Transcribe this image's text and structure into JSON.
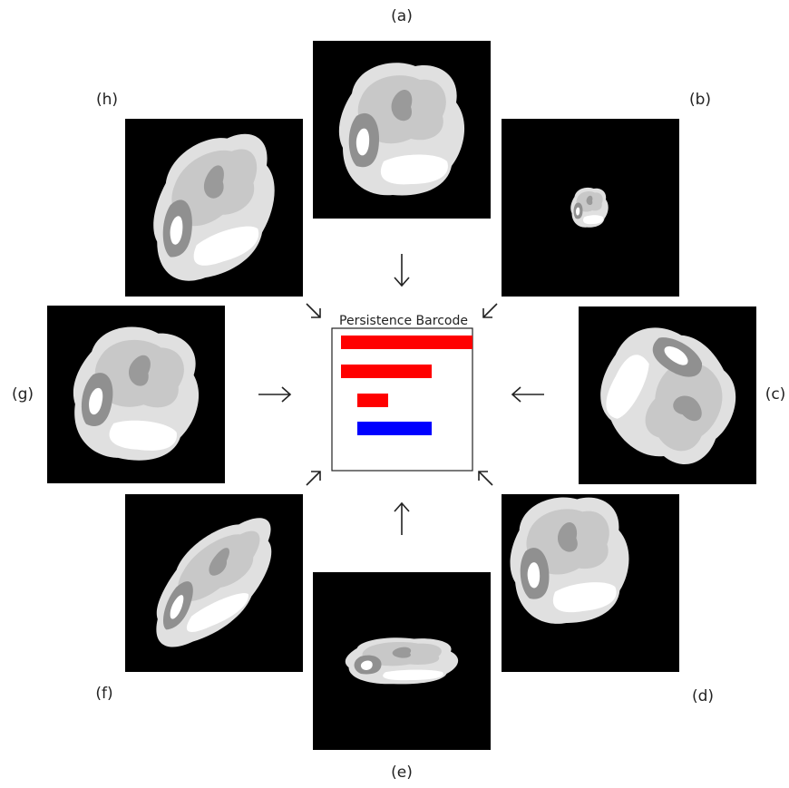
{
  "panels": [
    {
      "label": "(a)"
    },
    {
      "label": "(b)"
    },
    {
      "label": "(c)"
    },
    {
      "label": "(d)"
    },
    {
      "label": "(e)"
    },
    {
      "label": "(f)"
    },
    {
      "label": "(g)"
    },
    {
      "label": "(h)"
    }
  ],
  "center": {
    "title": "Persistence Barcode"
  }
}
